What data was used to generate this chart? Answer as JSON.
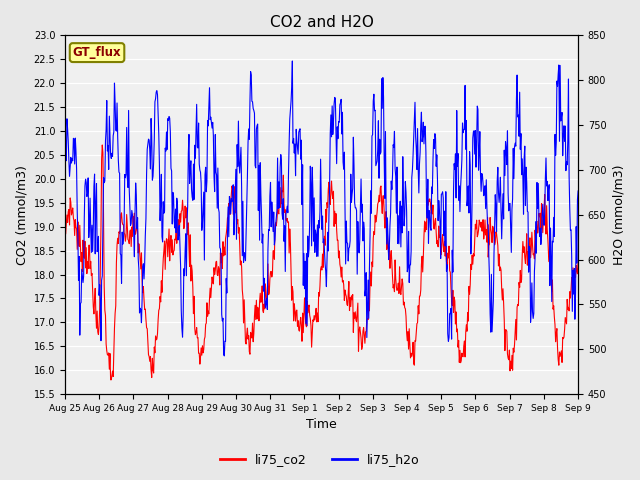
{
  "title": "CO2 and H2O",
  "xlabel": "Time",
  "ylabel_left": "CO2 (mmol/m3)",
  "ylabel_right": "H2O (mmol/m3)",
  "ylim_left": [
    15.5,
    23.0
  ],
  "ylim_right": [
    450,
    850
  ],
  "yticks_left": [
    15.5,
    16.0,
    16.5,
    17.0,
    17.5,
    18.0,
    18.5,
    19.0,
    19.5,
    20.0,
    20.5,
    21.0,
    21.5,
    22.0,
    22.5,
    23.0
  ],
  "yticks_right": [
    450,
    500,
    550,
    600,
    650,
    700,
    750,
    800,
    850
  ],
  "xtick_labels": [
    "Aug 25",
    "Aug 26",
    "Aug 27",
    "Aug 28",
    "Aug 29",
    "Aug 30",
    "Aug 31",
    "Sep 1",
    "Sep 2",
    "Sep 3",
    "Sep 4",
    "Sep 5",
    "Sep 6",
    "Sep 7",
    "Sep 8",
    "Sep 9"
  ],
  "co2_color": "#FF0000",
  "h2o_color": "#0000FF",
  "bg_color": "#E8E8E8",
  "plot_bg_color": "#F0F0F0",
  "annotation_text": "GT_flux",
  "annotation_bg": "#FFFF99",
  "annotation_border": "#808000",
  "legend_entries": [
    "li75_co2",
    "li75_h2o"
  ],
  "grid_color": "#FFFFFF",
  "linewidth": 0.8
}
